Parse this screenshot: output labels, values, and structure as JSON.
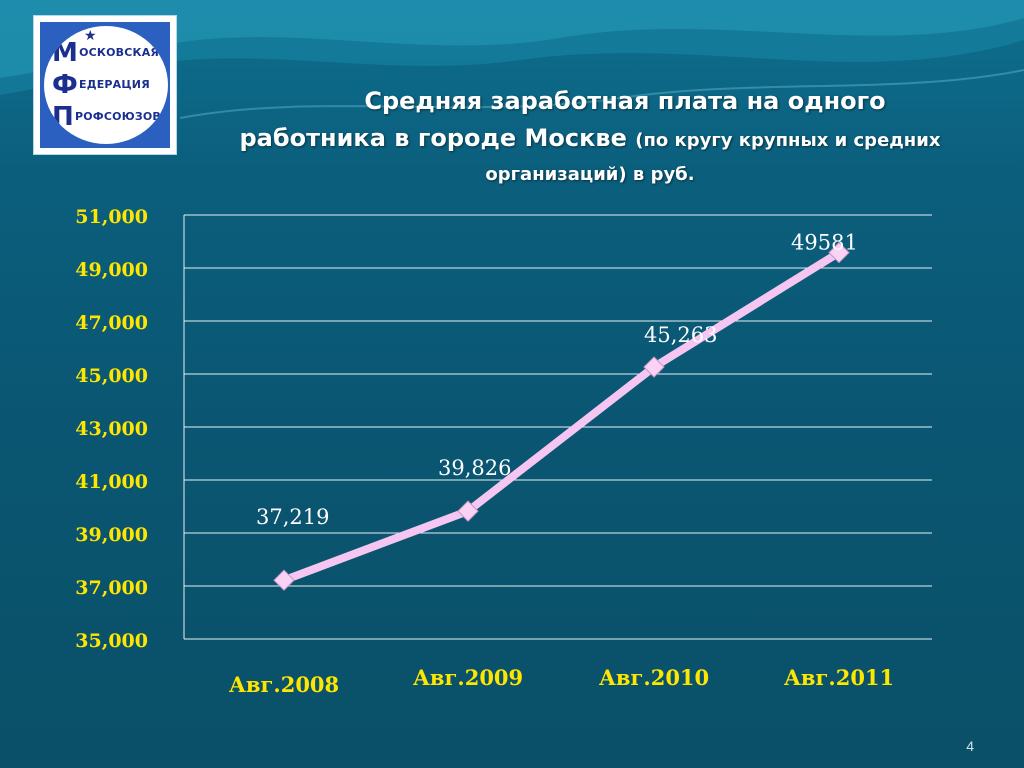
{
  "logo": {
    "line1_initial": "М",
    "line1_rest": "ОСКОВСКАЯ",
    "line2_initial": "Ф",
    "line2_rest": "ЕДЕРАЦИЯ",
    "line3_initial": "П",
    "line3_rest": "РОФСОЮЗОВ",
    "star": "★"
  },
  "title": {
    "line1": "Средняя заработная плата на  одного",
    "line2_main": "работника в городе Москве",
    "line2_small": "(по кругу крупных и средних",
    "line3": "организаций)  в руб."
  },
  "chart_data": {
    "type": "line",
    "categories": [
      "Авг.2008",
      "Авг.2009",
      "Авг.2010",
      "Авг.2011"
    ],
    "values": [
      37219,
      39826,
      45263,
      49581
    ],
    "data_labels": [
      "37,219",
      "39,826",
      "45,263",
      "49581"
    ],
    "y_ticks": [
      "35,000",
      "37,000",
      "39,000",
      "41,000",
      "43,000",
      "45,000",
      "47,000",
      "49,000",
      "51,000"
    ],
    "ylim": [
      35000,
      51000
    ],
    "grid": true,
    "line_color": "#f6c6f2",
    "marker_color": "#f9d2f6",
    "tick_color": "#ffe600"
  },
  "page_number": "4"
}
